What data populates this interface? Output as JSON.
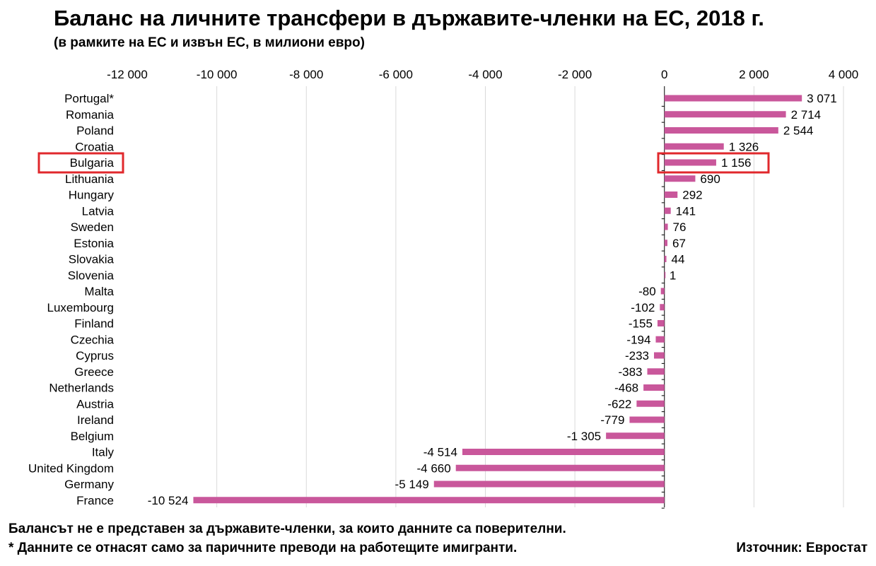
{
  "header": {
    "title": "Баланс на личните трансфери в държавите-членки на ЕС, 2018 г.",
    "subtitle": "(в рамките на ЕС и извън ЕС, в милиони евро)"
  },
  "footer": {
    "note1": "Балансът не е представен за държавите-членки, за които данните са поверителни.",
    "note2": "* Данните се отнасят само за паричните преводи на работещите имигранти.",
    "source": "Източник: Евростат"
  },
  "chart_data": {
    "type": "bar",
    "orientation": "horizontal",
    "title": "Баланс на личните трансфери в държавите-членки на ЕС, 2018 г.",
    "subtitle": "(в рамките на ЕС и извън ЕС, в милиони евро)",
    "categories": [
      "Portugal*",
      "Romania",
      "Poland",
      "Croatia",
      "Bulgaria",
      "Lithuania",
      "Hungary",
      "Latvia",
      "Sweden",
      "Estonia",
      "Slovakia",
      "Slovenia",
      "Malta",
      "Luxembourg",
      "Finland",
      "Czechia",
      "Cyprus",
      "Greece",
      "Netherlands",
      "Austria",
      "Ireland",
      "Belgium",
      "Italy",
      "United Kingdom",
      "Germany",
      "France"
    ],
    "values": [
      3071,
      2714,
      2544,
      1326,
      1156,
      690,
      292,
      141,
      76,
      67,
      44,
      1,
      -80,
      -102,
      -155,
      -194,
      -233,
      -383,
      -468,
      -622,
      -779,
      -1305,
      -4514,
      -4660,
      -5149,
      -10524
    ],
    "value_labels": [
      "3 071",
      "2 714",
      "2 544",
      "1 326",
      "1 156",
      "690",
      "292",
      "141",
      "76",
      "67",
      "44",
      "1",
      "-80",
      "-102",
      "-155",
      "-194",
      "-233",
      "-383",
      "-468",
      "-622",
      "-779",
      "-1 305",
      "-4 514",
      "-4 660",
      "-5 149",
      "-10 524"
    ],
    "xlim": [
      -12000,
      4000
    ],
    "ticks": [
      -12000,
      -10000,
      -8000,
      -6000,
      -4000,
      -2000,
      0,
      2000,
      4000
    ],
    "tick_labels": [
      "-12 000",
      "-10 000",
      "-8 000",
      "-6 000",
      "-4 000",
      "-2 000",
      "0",
      "2 000",
      "4 000"
    ],
    "axis_position": "top",
    "grid": true,
    "highlighted_category": "Bulgaria",
    "colors": {
      "bar": "#c9579b",
      "grid": "#d9d9d9",
      "highlight": "#e0282c"
    }
  }
}
